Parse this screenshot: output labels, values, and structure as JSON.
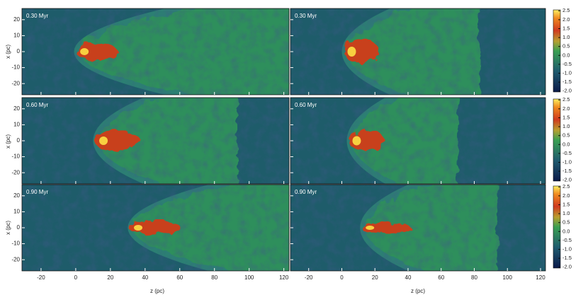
{
  "figure": {
    "x_label": "z (pc)",
    "y_label": "x (pc)",
    "xlim": [
      -31,
      123
    ],
    "ylim": [
      -27,
      27
    ],
    "xticks": [
      -20,
      0,
      20,
      40,
      60,
      80,
      100,
      120
    ],
    "yticks": [
      20,
      10,
      0,
      -10,
      -20
    ],
    "colorbar": {
      "lim": [
        -2.05,
        2.55
      ],
      "ticks": [
        2.5,
        {
          "value": 2,
          "label": "2.0"
        },
        1.5,
        {
          "value": 1,
          "label": "1.0"
        },
        0.5,
        {
          "value": 0,
          "label": "0.0"
        },
        -0.5,
        {
          "value": -1,
          "label": "-1.0"
        },
        -1.5,
        {
          "value": -2,
          "label": "-2.0"
        }
      ]
    },
    "panels": [
      {
        "label": "0.30 Myr"
      },
      {
        "label": "0.30 Myr"
      },
      {
        "label": "0.60 Myr"
      },
      {
        "label": "0.60 Myr"
      },
      {
        "label": "0.90 Myr"
      },
      {
        "label": "0.90 Myr"
      }
    ]
  }
}
